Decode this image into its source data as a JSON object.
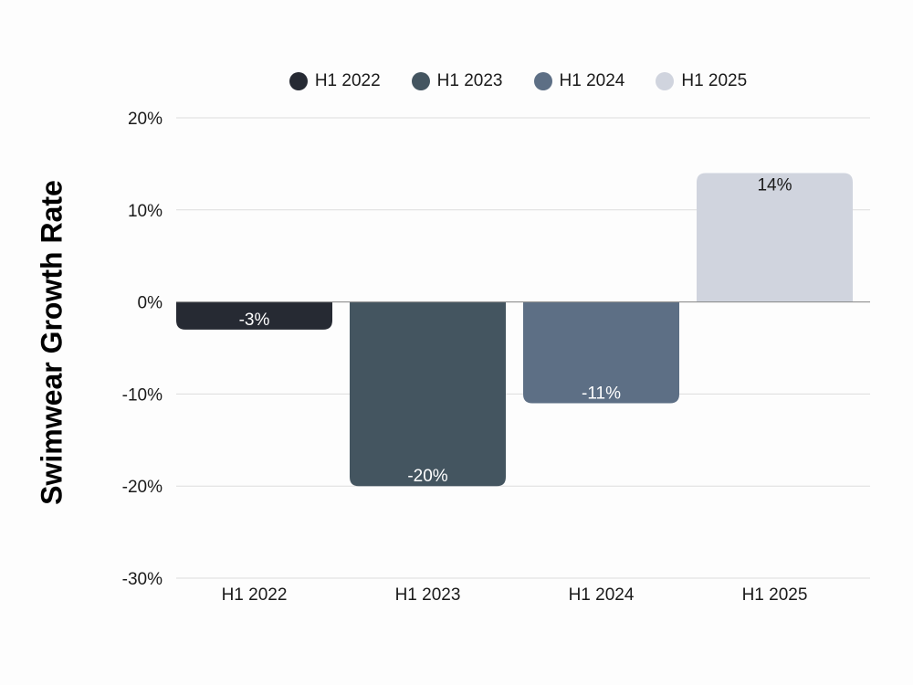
{
  "chart_data": {
    "type": "bar",
    "categories": [
      "H1 2022",
      "H1 2023",
      "H1 2024",
      "H1 2025"
    ],
    "values": [
      -3,
      -20,
      -11,
      14
    ],
    "data_labels": [
      "-3%",
      "-20%",
      "-11%",
      "14%"
    ],
    "title": "",
    "xlabel": "",
    "ylabel": "Swimwear Growth Rate",
    "ylim": [
      -30,
      20
    ],
    "yticks": [
      20,
      10,
      0,
      -10,
      -20,
      -30
    ],
    "ytick_labels": [
      "20%",
      "10%",
      "0%",
      "-10%",
      "-20%",
      "-30%"
    ],
    "grid": true,
    "legend_placement": "top",
    "legend": [
      "H1 2022",
      "H1 2023",
      "H1 2024",
      "H1 2025"
    ],
    "colors": [
      "#262a33",
      "#445560",
      "#5d6f85",
      "#d0d4de"
    ],
    "label_colors": [
      "#ffffff",
      "#ffffff",
      "#ffffff",
      "#1a1a1a"
    ]
  }
}
